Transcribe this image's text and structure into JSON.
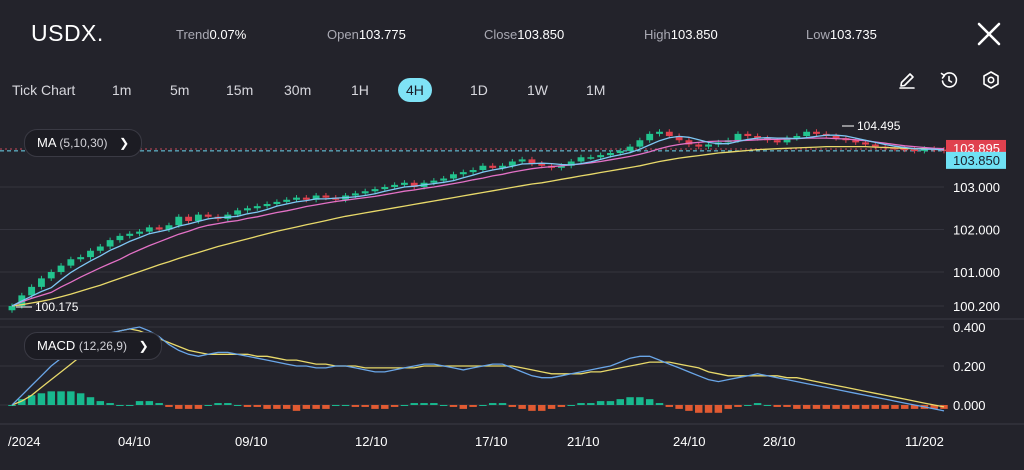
{
  "header": {
    "symbol": "USDX.",
    "trend_label": "Trend",
    "trend_value": "0.07%",
    "open_label": "Open",
    "open_value": "103.775",
    "close_label": "Close",
    "close_value": "103.850",
    "high_label": "High",
    "high_value": "103.850",
    "low_label": "Low",
    "low_value": "103.735"
  },
  "timeframes": [
    "Tick Chart",
    "1m",
    "5m",
    "15m",
    "30m",
    "1H",
    "4H",
    "1D",
    "1W",
    "1M"
  ],
  "active_timeframe": "4H",
  "toolbar": {
    "icons": [
      "pencil-icon",
      "reset-icon",
      "settings-icon",
      "close-icon"
    ]
  },
  "colors": {
    "background": "#23232b",
    "up": "#22c38e",
    "down": "#e0414f",
    "accent": "#7fe3f6",
    "ma5": "#7ec7f4",
    "ma10": "#e371c6",
    "ma30": "#e8d96a",
    "macd": "#6aa6e8",
    "signal": "#e8d96a",
    "hist_up": "#18b88e",
    "hist_down": "#e05a32"
  },
  "indicators": {
    "ma": {
      "label": "MA",
      "params": "(5,10,30)"
    },
    "macd": {
      "label": "MACD",
      "params": "(12,26,9)"
    }
  },
  "price_labels": {
    "current": "103.895",
    "close": "103.850"
  },
  "annotations": {
    "high": "104.495",
    "low": "100.175"
  },
  "chart_data": [
    {
      "type": "candlestick",
      "title": "",
      "y_ticks": [
        "103.000",
        "102.000",
        "101.000",
        "100.200"
      ],
      "ylim": [
        100.0,
        104.7
      ],
      "x_ticks": [
        "/2024",
        "04/10",
        "09/10",
        "12/10",
        "17/10",
        "21/10",
        "24/10",
        "28/10",
        "11/202"
      ],
      "grid": true,
      "close": [
        100.2,
        100.45,
        100.65,
        100.85,
        101.0,
        101.15,
        101.3,
        101.35,
        101.5,
        101.6,
        101.75,
        101.85,
        101.9,
        101.95,
        102.05,
        102.0,
        102.1,
        102.3,
        102.2,
        102.35,
        102.3,
        102.25,
        102.35,
        102.45,
        102.5,
        102.55,
        102.6,
        102.65,
        102.7,
        102.75,
        102.7,
        102.8,
        102.75,
        102.7,
        102.8,
        102.85,
        102.9,
        102.95,
        103.0,
        103.05,
        103.1,
        103.0,
        103.1,
        103.15,
        103.2,
        103.3,
        103.35,
        103.4,
        103.5,
        103.45,
        103.5,
        103.6,
        103.65,
        103.55,
        103.5,
        103.45,
        103.5,
        103.6,
        103.7,
        103.7,
        103.75,
        103.8,
        103.85,
        103.95,
        104.1,
        104.25,
        104.3,
        104.2,
        104.1,
        104.0,
        103.95,
        104.0,
        104.05,
        104.1,
        104.25,
        104.2,
        104.15,
        104.1,
        104.05,
        104.15,
        104.2,
        104.3,
        104.25,
        104.2,
        104.15,
        104.1,
        104.05,
        104.0,
        103.95,
        103.92,
        103.9,
        103.88,
        103.85,
        103.9,
        103.88,
        103.85
      ],
      "ma5": [
        100.2,
        100.32,
        100.43,
        100.54,
        100.63,
        100.82,
        100.99,
        101.13,
        101.26,
        101.38,
        101.51,
        101.61,
        101.72,
        101.81,
        101.9,
        101.95,
        102.0,
        102.08,
        102.13,
        102.19,
        102.25,
        102.28,
        102.29,
        102.31,
        102.37,
        102.41,
        102.47,
        102.55,
        102.6,
        102.65,
        102.68,
        102.72,
        102.72,
        102.74,
        102.75,
        102.77,
        102.8,
        102.84,
        102.9,
        102.95,
        103.0,
        103.02,
        103.05,
        103.08,
        103.11,
        103.15,
        103.22,
        103.28,
        103.35,
        103.4,
        103.44,
        103.49,
        103.54,
        103.55,
        103.56,
        103.55,
        103.53,
        103.52,
        103.55,
        103.59,
        103.65,
        103.71,
        103.76,
        103.81,
        103.89,
        103.99,
        104.09,
        104.16,
        104.19,
        104.17,
        104.11,
        104.05,
        104.02,
        104.02,
        104.07,
        104.12,
        104.15,
        104.16,
        104.15,
        104.15,
        104.14,
        104.16,
        104.19,
        104.22,
        104.22,
        104.2,
        104.15,
        104.1,
        104.05,
        104.0,
        103.96,
        103.93,
        103.9,
        103.89,
        103.89,
        103.87
      ],
      "ma10": [
        100.2,
        100.3,
        100.38,
        100.45,
        100.52,
        100.65,
        100.76,
        100.88,
        100.99,
        101.1,
        101.2,
        101.3,
        101.42,
        101.52,
        101.62,
        101.71,
        101.8,
        101.89,
        101.96,
        102.04,
        102.1,
        102.14,
        102.18,
        102.21,
        102.26,
        102.3,
        102.35,
        102.4,
        102.44,
        102.49,
        102.54,
        102.58,
        102.62,
        102.66,
        102.69,
        102.72,
        102.75,
        102.78,
        102.82,
        102.86,
        102.9,
        102.93,
        102.97,
        103.0,
        103.04,
        103.08,
        103.12,
        103.17,
        103.21,
        103.26,
        103.3,
        103.35,
        103.39,
        103.43,
        103.46,
        103.48,
        103.5,
        103.52,
        103.54,
        103.57,
        103.6,
        103.64,
        103.68,
        103.72,
        103.77,
        103.83,
        103.9,
        103.96,
        104.0,
        104.03,
        104.05,
        104.07,
        104.08,
        104.08,
        104.09,
        104.1,
        104.11,
        104.12,
        104.12,
        104.13,
        104.14,
        104.15,
        104.15,
        104.15,
        104.14,
        104.13,
        104.11,
        104.09,
        104.06,
        104.03,
        104.0,
        103.97,
        103.95,
        103.93,
        103.91,
        103.9
      ],
      "ma30": [
        100.2,
        100.23,
        100.27,
        100.31,
        100.36,
        100.42,
        100.48,
        100.55,
        100.62,
        100.69,
        100.77,
        100.85,
        100.93,
        101.01,
        101.09,
        101.17,
        101.24,
        101.32,
        101.39,
        101.46,
        101.53,
        101.6,
        101.66,
        101.72,
        101.78,
        101.84,
        101.9,
        101.96,
        102.01,
        102.06,
        102.11,
        102.16,
        102.21,
        102.26,
        102.31,
        102.35,
        102.39,
        102.43,
        102.47,
        102.51,
        102.55,
        102.59,
        102.63,
        102.67,
        102.71,
        102.75,
        102.79,
        102.83,
        102.87,
        102.91,
        102.95,
        102.99,
        103.03,
        103.07,
        103.1,
        103.14,
        103.18,
        103.22,
        103.26,
        103.3,
        103.34,
        103.38,
        103.42,
        103.46,
        103.5,
        103.55,
        103.6,
        103.64,
        103.68,
        103.71,
        103.74,
        103.77,
        103.8,
        103.82,
        103.84,
        103.86,
        103.88,
        103.89,
        103.9,
        103.91,
        103.92,
        103.93,
        103.94,
        103.95,
        103.95,
        103.95,
        103.95,
        103.95,
        103.94,
        103.93,
        103.92,
        103.91,
        103.9,
        103.9,
        103.9,
        103.9
      ]
    },
    {
      "type": "macd",
      "title": "",
      "y_ticks": [
        "0.400",
        "0.200",
        "0.000"
      ],
      "ylim": [
        -0.1,
        0.42
      ],
      "macd": [
        0.0,
        0.05,
        0.1,
        0.15,
        0.2,
        0.24,
        0.28,
        0.31,
        0.33,
        0.35,
        0.37,
        0.38,
        0.39,
        0.4,
        0.38,
        0.35,
        0.31,
        0.28,
        0.26,
        0.25,
        0.26,
        0.27,
        0.27,
        0.26,
        0.25,
        0.24,
        0.23,
        0.22,
        0.21,
        0.2,
        0.2,
        0.19,
        0.19,
        0.2,
        0.2,
        0.19,
        0.18,
        0.17,
        0.17,
        0.18,
        0.19,
        0.2,
        0.21,
        0.21,
        0.2,
        0.19,
        0.18,
        0.19,
        0.2,
        0.21,
        0.21,
        0.19,
        0.17,
        0.15,
        0.14,
        0.14,
        0.15,
        0.16,
        0.17,
        0.18,
        0.19,
        0.2,
        0.22,
        0.24,
        0.25,
        0.25,
        0.23,
        0.21,
        0.19,
        0.17,
        0.15,
        0.13,
        0.12,
        0.13,
        0.14,
        0.15,
        0.16,
        0.15,
        0.14,
        0.13,
        0.12,
        0.11,
        0.1,
        0.09,
        0.08,
        0.07,
        0.06,
        0.05,
        0.04,
        0.03,
        0.02,
        0.01,
        0.0,
        -0.01,
        -0.02,
        -0.03
      ],
      "signal": [
        0.0,
        0.02,
        0.05,
        0.09,
        0.13,
        0.17,
        0.21,
        0.25,
        0.29,
        0.33,
        0.36,
        0.38,
        0.39,
        0.38,
        0.36,
        0.34,
        0.32,
        0.3,
        0.28,
        0.27,
        0.26,
        0.26,
        0.26,
        0.26,
        0.26,
        0.25,
        0.25,
        0.24,
        0.23,
        0.23,
        0.22,
        0.21,
        0.21,
        0.2,
        0.2,
        0.2,
        0.19,
        0.19,
        0.19,
        0.19,
        0.19,
        0.19,
        0.2,
        0.2,
        0.2,
        0.2,
        0.2,
        0.2,
        0.2,
        0.2,
        0.2,
        0.2,
        0.19,
        0.18,
        0.17,
        0.16,
        0.16,
        0.16,
        0.16,
        0.17,
        0.17,
        0.18,
        0.19,
        0.2,
        0.21,
        0.22,
        0.22,
        0.22,
        0.21,
        0.2,
        0.19,
        0.17,
        0.16,
        0.15,
        0.15,
        0.15,
        0.15,
        0.15,
        0.15,
        0.14,
        0.14,
        0.13,
        0.12,
        0.11,
        0.1,
        0.09,
        0.08,
        0.07,
        0.06,
        0.05,
        0.04,
        0.03,
        0.02,
        0.01,
        0.0,
        -0.01
      ],
      "histogram": [
        0.0,
        0.03,
        0.05,
        0.06,
        0.07,
        0.07,
        0.07,
        0.06,
        0.04,
        0.02,
        0.01,
        0.0,
        0.0,
        0.02,
        0.02,
        0.01,
        -0.01,
        -0.02,
        -0.02,
        -0.02,
        0.0,
        0.01,
        0.01,
        0.0,
        -0.01,
        -0.01,
        -0.02,
        -0.02,
        -0.02,
        -0.03,
        -0.02,
        -0.02,
        -0.02,
        0.0,
        0.0,
        -0.01,
        -0.01,
        -0.02,
        -0.02,
        -0.01,
        0.0,
        0.01,
        0.01,
        0.01,
        0.0,
        -0.01,
        -0.02,
        -0.01,
        0.0,
        0.01,
        0.01,
        -0.01,
        -0.02,
        -0.03,
        -0.03,
        -0.02,
        -0.01,
        0.0,
        0.01,
        0.01,
        0.02,
        0.02,
        0.03,
        0.04,
        0.04,
        0.03,
        0.01,
        -0.01,
        -0.02,
        -0.03,
        -0.04,
        -0.04,
        -0.04,
        -0.02,
        -0.01,
        0.0,
        0.01,
        0.0,
        -0.01,
        -0.01,
        -0.02,
        -0.02,
        -0.02,
        -0.02,
        -0.02,
        -0.02,
        -0.02,
        -0.02,
        -0.02,
        -0.02,
        -0.02,
        -0.02,
        -0.02,
        -0.02,
        -0.02,
        -0.02
      ]
    }
  ]
}
